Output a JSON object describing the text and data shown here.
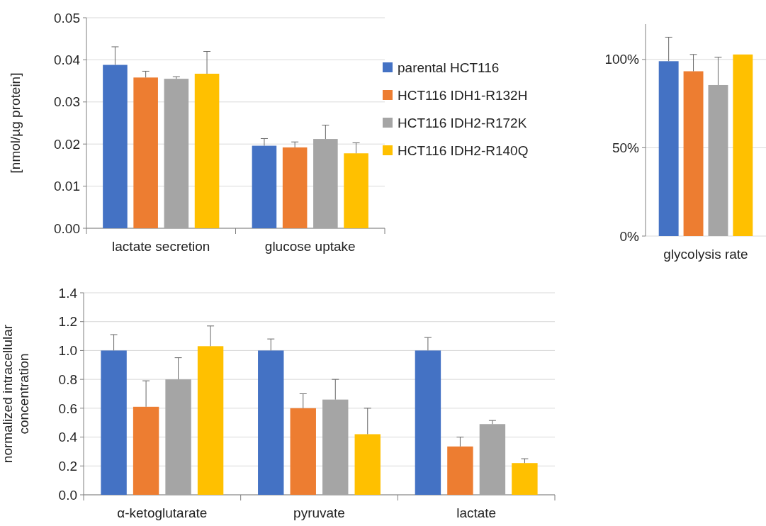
{
  "chart_data": [
    {
      "type": "bar",
      "categories": [
        "lactate secretion",
        "glucose uptake"
      ],
      "ylabel": "[nmol/µg protein]",
      "ylim": [
        0,
        0.05
      ],
      "yticks": [
        {
          "value": 0,
          "label": "0.00"
        },
        {
          "value": 0.01,
          "label": "0.01"
        },
        {
          "value": 0.02,
          "label": "0.02"
        },
        {
          "value": 0.03,
          "label": "0.03"
        },
        {
          "value": 0.04,
          "label": "0.04"
        },
        {
          "value": 0.05,
          "label": "0.05"
        }
      ],
      "grid": "y",
      "legend": "right",
      "series": [
        {
          "name": "parental HCT116",
          "color": "#4472c4",
          "values": [
            0.0388,
            0.0196
          ],
          "errors": [
            [
              0.0388,
              0.0431
            ],
            [
              0.0196,
              0.0213
            ]
          ]
        },
        {
          "name": "HCT116 IDH1-R132H",
          "color": "#ed7d31",
          "values": [
            0.0358,
            0.0192
          ],
          "errors": [
            [
              0.0358,
              0.0373
            ],
            [
              0.0192,
              0.0205
            ]
          ]
        },
        {
          "name": "HCT116 IDH2-R172K",
          "color": "#a5a5a5",
          "values": [
            0.0355,
            0.0212
          ],
          "errors": [
            [
              0.0355,
              0.036
            ],
            [
              0.0212,
              0.0245
            ]
          ]
        },
        {
          "name": "HCT116 IDH2-R140Q",
          "color": "#ffc000",
          "values": [
            0.0367,
            0.0178
          ],
          "errors": [
            [
              0.0367,
              0.042
            ],
            [
              0.0178,
              0.0203
            ]
          ]
        }
      ]
    },
    {
      "type": "bar",
      "categories": [
        "glycolysis rate"
      ],
      "ylim": [
        0,
        120
      ],
      "yticks": [
        {
          "value": 0,
          "label": "0%"
        },
        {
          "value": 50,
          "label": "50%"
        },
        {
          "value": 100,
          "label": "100%"
        }
      ],
      "grid": "y",
      "series": [
        {
          "color": "#4472c4",
          "values": [
            99
          ],
          "errors": [
            [
              99,
              112.6
            ]
          ]
        },
        {
          "color": "#ed7d31",
          "values": [
            93.3
          ],
          "errors": [
            [
              93.3,
              102.8
            ]
          ]
        },
        {
          "color": "#a5a5a5",
          "values": [
            85.5
          ],
          "errors": [
            [
              85.5,
              101.2
            ]
          ]
        },
        {
          "color": "#ffc000",
          "values": [
            102.8
          ],
          "errors": [
            null
          ]
        }
      ]
    },
    {
      "type": "bar",
      "categories": [
        "α-ketoglutarate",
        "pyruvate",
        "lactate"
      ],
      "ylabel": "normalized intracellular concentration",
      "ylim": [
        0,
        1.4
      ],
      "yticks": [
        {
          "value": 0,
          "label": "0.0"
        },
        {
          "value": 0.2,
          "label": "0.2"
        },
        {
          "value": 0.4,
          "label": "0.4"
        },
        {
          "value": 0.6,
          "label": "0.6"
        },
        {
          "value": 0.8,
          "label": "0.8"
        },
        {
          "value": 1.0,
          "label": "1.0"
        },
        {
          "value": 1.2,
          "label": "1.2"
        },
        {
          "value": 1.4,
          "label": "1.4"
        }
      ],
      "grid": "y",
      "series": [
        {
          "color": "#4472c4",
          "values": [
            1.0,
            1.0,
            1.0
          ],
          "errors": [
            [
              1.0,
              1.11
            ],
            [
              1.0,
              1.08
            ],
            [
              1.0,
              1.09
            ]
          ]
        },
        {
          "color": "#ed7d31",
          "values": [
            0.61,
            0.6,
            0.335
          ],
          "errors": [
            [
              0.61,
              0.79
            ],
            [
              0.6,
              0.7
            ],
            [
              0.335,
              0.4
            ]
          ]
        },
        {
          "color": "#a5a5a5",
          "values": [
            0.8,
            0.66,
            0.49
          ],
          "errors": [
            [
              0.8,
              0.95
            ],
            [
              0.66,
              0.8
            ],
            [
              0.49,
              0.515
            ]
          ]
        },
        {
          "color": "#ffc000",
          "values": [
            1.03,
            0.42,
            0.22
          ],
          "errors": [
            [
              1.03,
              1.17
            ],
            [
              0.42,
              0.6
            ],
            [
              0.22,
              0.25
            ]
          ]
        }
      ]
    }
  ]
}
